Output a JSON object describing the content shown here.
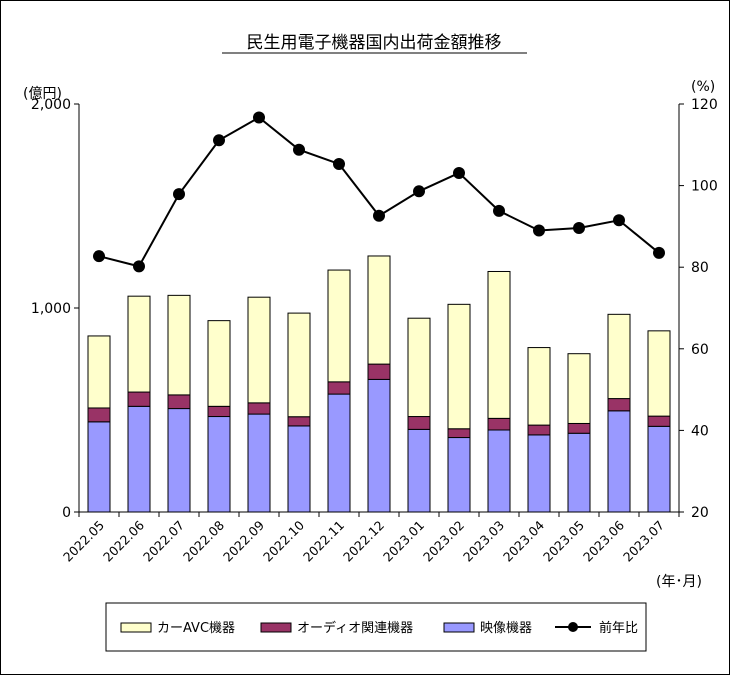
{
  "chart_data": {
    "type": "bar",
    "title": "民生用電子機器国内出荷金額推移",
    "left_unit": "(億円)",
    "right_unit": "(%)",
    "x_unit": "(年･月)",
    "categories": [
      "2022.05",
      "2022.06",
      "2022.07",
      "2022.08",
      "2022.09",
      "2022.10",
      "2022.11",
      "2022.12",
      "2023.01",
      "2023.02",
      "2023.03",
      "2023.04",
      "2023.05",
      "2023.06",
      "2023.07"
    ],
    "stacked": true,
    "series": [
      {
        "name": "映像機器",
        "kind": "bar",
        "axis": "left",
        "color": "#9999ff",
        "values": [
          442,
          518,
          507,
          468,
          480,
          422,
          578,
          650,
          405,
          365,
          402,
          378,
          386,
          496,
          420
        ]
      },
      {
        "name": "オーディオ関連機器",
        "kind": "bar",
        "axis": "left",
        "color": "#993366",
        "values": [
          68,
          70,
          67,
          50,
          55,
          45,
          60,
          75,
          63,
          43,
          57,
          48,
          48,
          60,
          50
        ]
      },
      {
        "name": "カーAVC機器",
        "kind": "bar",
        "axis": "left",
        "color": "#ffffcc",
        "values": [
          353,
          470,
          488,
          420,
          518,
          508,
          548,
          530,
          482,
          610,
          720,
          380,
          342,
          413,
          418
        ]
      },
      {
        "name": "前年比",
        "kind": "line",
        "axis": "right",
        "color": "#000000",
        "values": [
          82.7,
          80.2,
          97.9,
          111.1,
          116.7,
          108.8,
          105.3,
          92.6,
          98.6,
          103.1,
          93.8,
          89.0,
          89.6,
          91.5,
          83.5
        ]
      }
    ],
    "left_axis": {
      "ylim": [
        0,
        2000
      ],
      "ticks": [
        "0",
        "1,000",
        "2,000"
      ]
    },
    "right_axis": {
      "ylim": [
        20,
        120
      ],
      "ticks": [
        "20",
        "40",
        "60",
        "80",
        "100",
        "120"
      ]
    },
    "legend_order": [
      "カーAVC機器",
      "オーディオ関連機器",
      "映像機器",
      "前年比"
    ],
    "legend_position": "bottom",
    "grid": false
  }
}
